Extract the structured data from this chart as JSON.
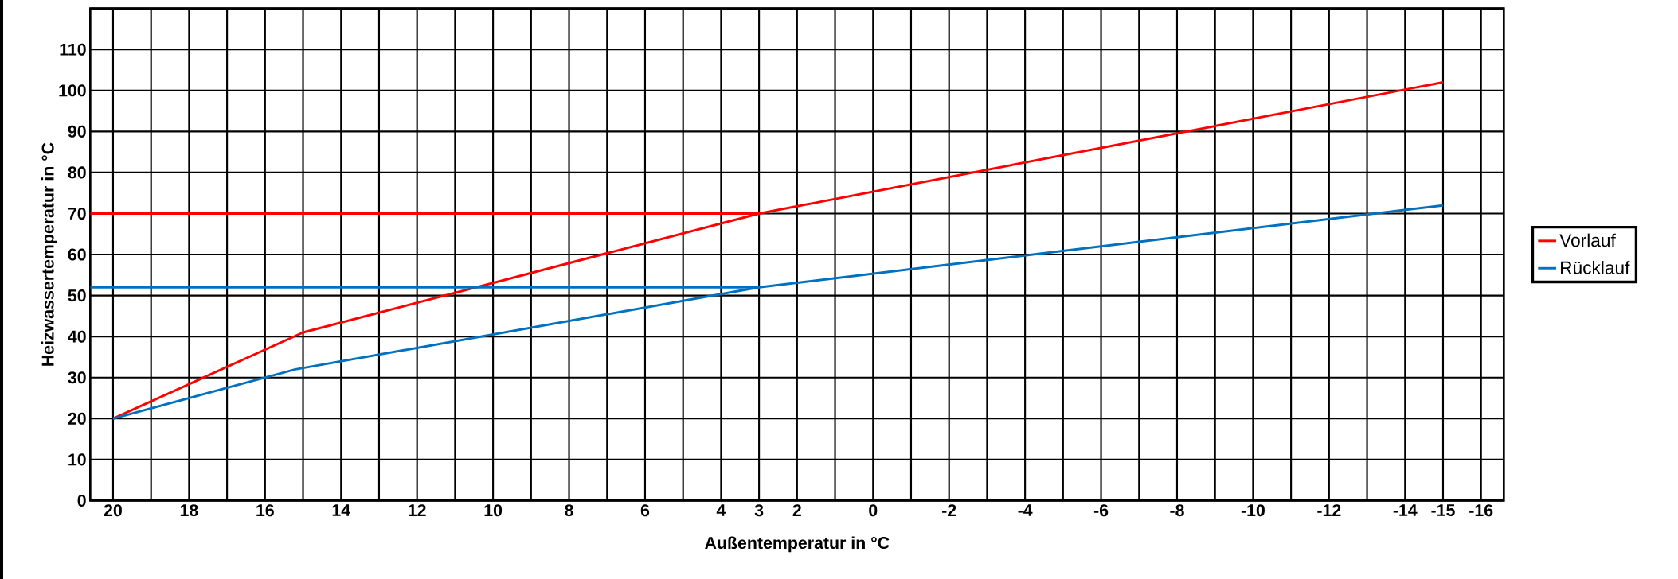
{
  "chart_data": {
    "type": "line",
    "xlabel": "Außentemperatur in °C",
    "ylabel": "Heizwassertemperatur in °C",
    "xlim": [
      20.6,
      -16.6
    ],
    "ylim": [
      0,
      120
    ],
    "xticks": [
      20,
      {
        "value": 19,
        "label": null
      },
      18,
      {
        "value": 17,
        "label": null
      },
      16,
      {
        "value": 15,
        "label": null
      },
      14,
      {
        "value": 13,
        "label": null
      },
      12,
      {
        "value": 11,
        "label": null
      },
      10,
      {
        "value": 9,
        "label": null
      },
      8,
      {
        "value": 7,
        "label": null
      },
      6,
      {
        "value": 5,
        "label": null
      },
      4,
      3,
      2,
      {
        "value": 1,
        "label": null
      },
      0,
      {
        "value": -1,
        "label": null
      },
      -2,
      {
        "value": -3,
        "label": null
      },
      -4,
      {
        "value": -5,
        "label": null
      },
      -6,
      {
        "value": -7,
        "label": null
      },
      -8,
      {
        "value": -9,
        "label": null
      },
      -10,
      {
        "value": -11,
        "label": null
      },
      -12,
      {
        "value": -13,
        "label": null
      },
      -14,
      -15,
      -16
    ],
    "yticks": [
      0,
      10,
      20,
      30,
      40,
      50,
      60,
      70,
      80,
      90,
      100,
      110,
      {
        "value": 120,
        "label": null
      }
    ],
    "grid": true,
    "legend": "right",
    "marker": "none",
    "line_style": "solid",
    "series": [
      {
        "name": "Vorlauf",
        "color": "#ff0000",
        "x": [
          20,
          15,
          3,
          -15
        ],
        "values": [
          20,
          41,
          70,
          102
        ]
      },
      {
        "name": "Rücklauf",
        "color": "#0070c0",
        "x": [
          20,
          15.2,
          3,
          -15
        ],
        "values": [
          20,
          32,
          52,
          72
        ]
      },
      {
        "color": "#ff0000",
        "x": [
          20.6,
          3
        ],
        "values": [
          70,
          70
        ]
      },
      {
        "color": "#0070c0",
        "x": [
          20.6,
          3
        ],
        "values": [
          52,
          52
        ]
      }
    ]
  }
}
